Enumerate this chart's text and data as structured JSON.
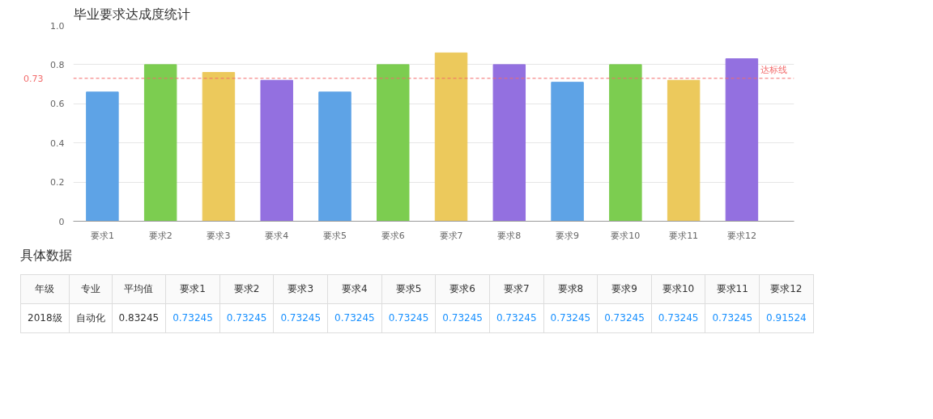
{
  "chart_data": [
    {
      "type": "bar",
      "title": "毕业要求达成度统计",
      "categories": [
        "要求1",
        "要求2",
        "要求3",
        "要求4",
        "要求5",
        "要求6",
        "要求7",
        "要求8",
        "要求9",
        "要求10",
        "要求11",
        "要求12"
      ],
      "values": [
        0.66,
        0.8,
        0.76,
        0.72,
        0.66,
        0.8,
        0.86,
        0.8,
        0.71,
        0.8,
        0.72,
        0.83
      ],
      "colors": [
        "#5ea3e6",
        "#7ccd50",
        "#ecc95c",
        "#9370e0",
        "#5ea3e6",
        "#7ccd50",
        "#ecc95c",
        "#9370e0",
        "#5ea3e6",
        "#7ccd50",
        "#ecc95c",
        "#9370e0"
      ],
      "ylim": [
        0,
        1.0
      ],
      "yticks": [
        0,
        0.2,
        0.4,
        0.6,
        0.8,
        {
          "value": 1.0,
          "label": "1.0"
        }
      ],
      "grid": "y",
      "ref_lines": [
        {
          "axis": "y",
          "value": 0.73,
          "label": "达标线",
          "color": "#f26b6b",
          "line_style": "dashed"
        }
      ],
      "annotations": [
        "0.73"
      ]
    },
    {
      "type": "other",
      "title": "具体数据",
      "annotations": [
        "年级",
        "专业",
        "平均值",
        "要求1",
        "要求2",
        "要求3",
        "要求4",
        "要求5",
        "要求6",
        "要求7",
        "要求8",
        "要求9",
        "要求10",
        "要求11",
        "要求12",
        "2018级",
        "自动化",
        "0.83245",
        "0.73245",
        "0.73245",
        "0.73245",
        "0.73245",
        "0.73245",
        "0.73245",
        "0.73245",
        "0.73245",
        "0.73245",
        "0.73245",
        "0.73245",
        "0.91524"
      ]
    }
  ]
}
